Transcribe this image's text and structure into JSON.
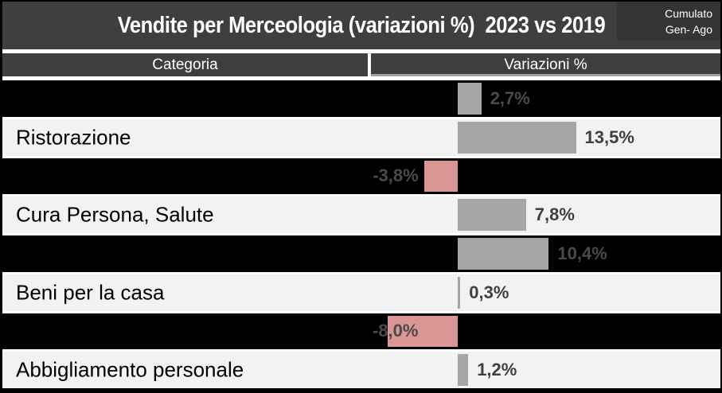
{
  "title": "Vendite per Merceologia (variazioni %)  2023 vs 2019",
  "corner_note": {
    "line1": "Cumulato",
    "line2": "Gen- Ago"
  },
  "columns": {
    "category": "Categoria",
    "variation": "Variazioni %"
  },
  "colors": {
    "positive_bar": "#a6a6a6",
    "negative_bar": "#d99694",
    "header_bg": "#3f3f3f",
    "corner_box_bg": "#343434",
    "dark_row_bg": "#000000",
    "light_row_bg": "#f2f2f2",
    "dark_row_value_label": "#4a4a4a",
    "light_row_value_label": "#3f3f3f"
  },
  "chart_data": {
    "type": "bar",
    "orientation": "horizontal",
    "title": "Vendite per Merceologia (variazioni %)  2023 vs 2019",
    "subtitle": "Cumulato Gen- Ago",
    "xlabel": "Variazioni %",
    "ylabel": "Categoria",
    "xlim": [
      -10,
      30
    ],
    "grid": false,
    "legend": false,
    "categories": [
      "",
      "Ristorazione",
      "",
      "Cura Persona, Salute",
      "",
      "Beni per la casa",
      "",
      "Abbigliamento personale"
    ],
    "values": [
      2.7,
      13.5,
      -3.8,
      7.8,
      10.4,
      0.3,
      -8.0,
      1.2
    ],
    "value_labels": [
      "2,7%",
      "13,5%",
      "-3,8%",
      "7,8%",
      "10,4%",
      "0,3%",
      "-8,0%",
      "1,2%"
    ]
  }
}
